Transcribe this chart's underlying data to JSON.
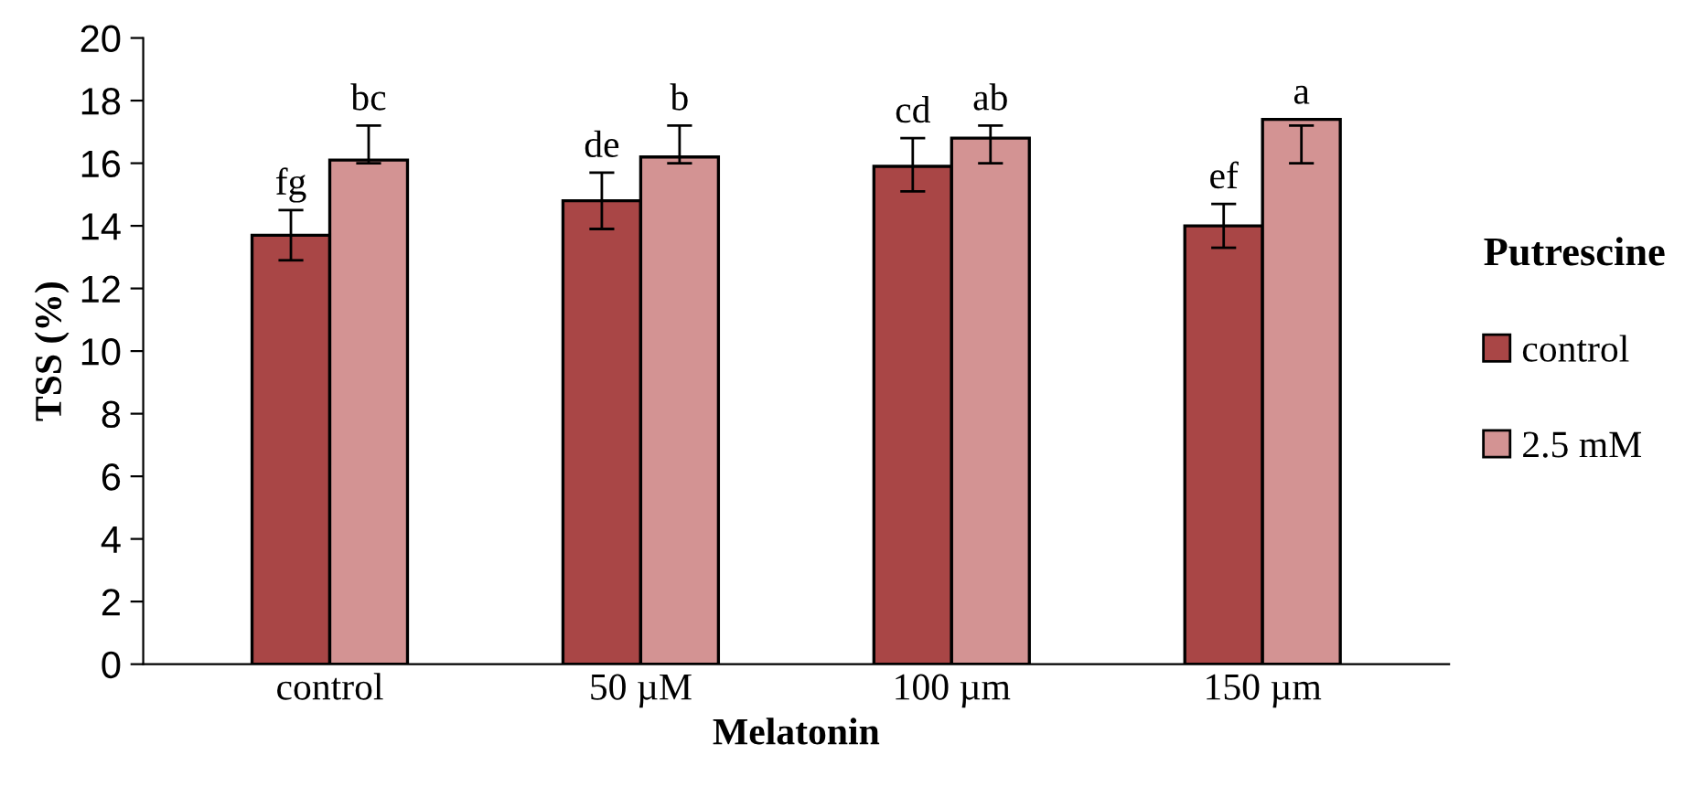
{
  "chart_data": {
    "type": "bar",
    "xlabel": "Melatonin",
    "ylabel": "TSS (%)",
    "legend_title": "Putrescine",
    "legend": "right",
    "grid": false,
    "categories": [
      "control",
      "50 µM",
      "100 µm",
      "150 µm"
    ],
    "ylim": [
      0,
      20
    ],
    "yticks": [
      0,
      2,
      4,
      6,
      8,
      10,
      12,
      14,
      16,
      18,
      20
    ],
    "series": [
      {
        "name": "control",
        "color": "#a94646",
        "values": [
          13.7,
          14.8,
          15.9,
          14.0
        ],
        "errors": [
          [
            12.9,
            14.5
          ],
          [
            13.9,
            15.7
          ],
          [
            15.1,
            16.8
          ],
          [
            13.3,
            14.7
          ]
        ],
        "value_labels": [
          "fg",
          "de",
          "cd",
          "ef"
        ]
      },
      {
        "name": "2.5 mM",
        "color": "#d39393",
        "values": [
          16.1,
          16.2,
          16.8,
          17.4
        ],
        "errors": [
          [
            16.0,
            17.2
          ],
          [
            16.0,
            17.2
          ],
          [
            16.0,
            17.2
          ],
          [
            16.0,
            17.2
          ]
        ],
        "value_labels": [
          "bc",
          "b",
          "ab",
          "a"
        ]
      }
    ]
  }
}
